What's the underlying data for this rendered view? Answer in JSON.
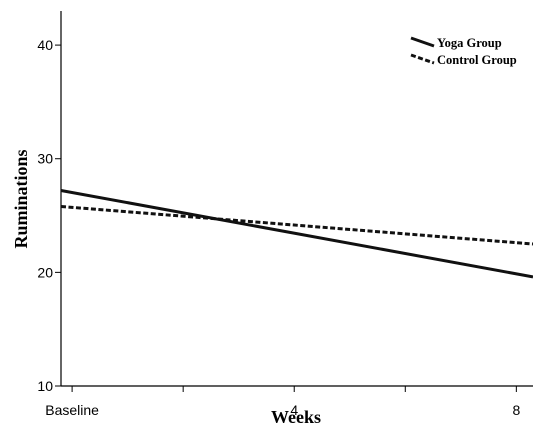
{
  "chart_data": {
    "type": "line",
    "title": "",
    "xlabel": "Weeks",
    "ylabel": "Ruminations",
    "xlim": [
      -0.2,
      8.3
    ],
    "ylim": [
      10,
      43
    ],
    "x_ticks": [
      {
        "value": 0,
        "label": "Baseline"
      },
      {
        "value": 2,
        "label": ""
      },
      {
        "value": 4,
        "label": "4"
      },
      {
        "value": 6,
        "label": ""
      },
      {
        "value": 8,
        "label": "8"
      }
    ],
    "y_ticks": [
      {
        "value": 10,
        "label": "10"
      },
      {
        "value": 20,
        "label": "20"
      },
      {
        "value": 30,
        "label": "30"
      },
      {
        "value": 40,
        "label": "40"
      }
    ],
    "grid": false,
    "legend_position": "top-right",
    "series": [
      {
        "name": "Yoga Group",
        "style": "solid",
        "color": "#111111",
        "x": [
          -0.2,
          8.3
        ],
        "y": [
          27.2,
          19.6
        ]
      },
      {
        "name": "Control Group",
        "style": "dashed",
        "color": "#111111",
        "x": [
          -0.2,
          8.3
        ],
        "y": [
          25.8,
          22.5
        ]
      }
    ]
  }
}
